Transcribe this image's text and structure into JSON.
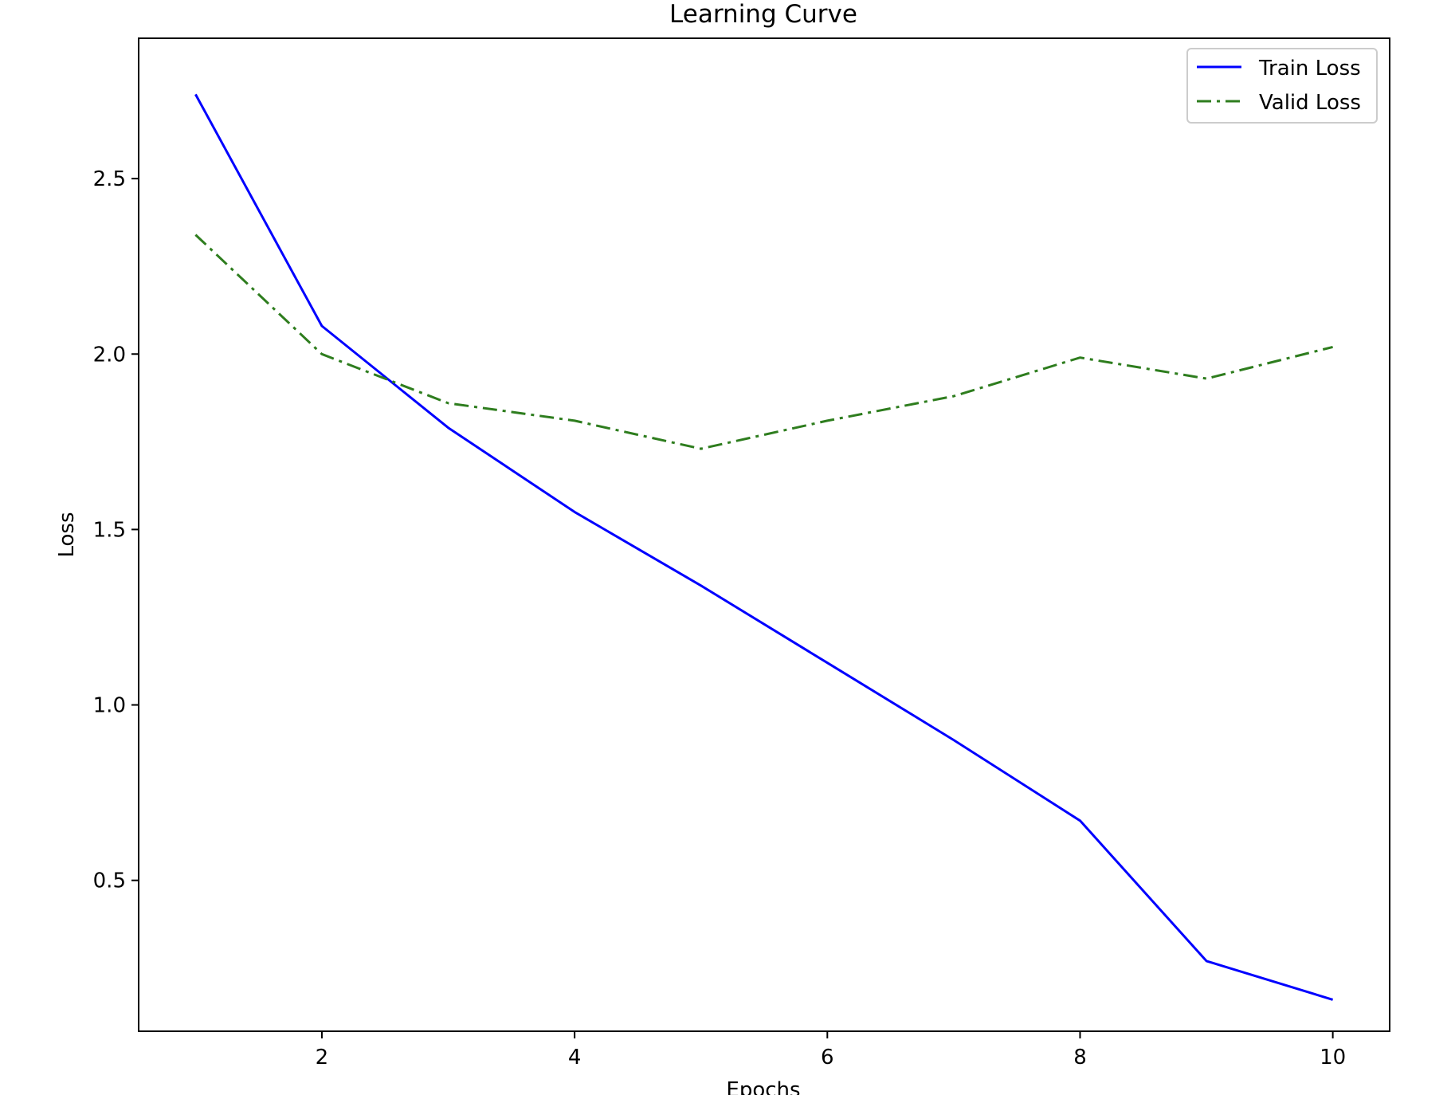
{
  "chart_data": {
    "type": "line",
    "title": "Learning Curve",
    "xlabel": "Epochs",
    "ylabel": "Loss",
    "x": [
      1,
      2,
      3,
      4,
      5,
      6,
      7,
      8,
      9,
      10
    ],
    "xlim": [
      0.55,
      10.45
    ],
    "ylim": [
      0.07,
      2.9
    ],
    "xticks": [
      2,
      4,
      6,
      8,
      10
    ],
    "xtick_labels": [
      "2",
      "4",
      "6",
      "8",
      "10"
    ],
    "yticks": [
      0.5,
      1.0,
      1.5,
      2.0,
      2.5
    ],
    "ytick_labels": [
      "0.5",
      "1.0",
      "1.5",
      "2.0",
      "2.5"
    ],
    "grid": false,
    "legend_position": "top-right",
    "series": [
      {
        "name": "Train Loss",
        "color": "#0000ff",
        "line_style": "solid",
        "values": [
          2.74,
          2.08,
          1.79,
          1.55,
          1.34,
          1.12,
          0.9,
          0.67,
          0.27,
          0.16
        ]
      },
      {
        "name": "Valid Loss",
        "color": "#2e7d1e",
        "line_style": "dashdot",
        "values": [
          2.34,
          2.0,
          1.86,
          1.81,
          1.73,
          1.81,
          1.88,
          1.99,
          1.93,
          2.02
        ]
      }
    ]
  }
}
